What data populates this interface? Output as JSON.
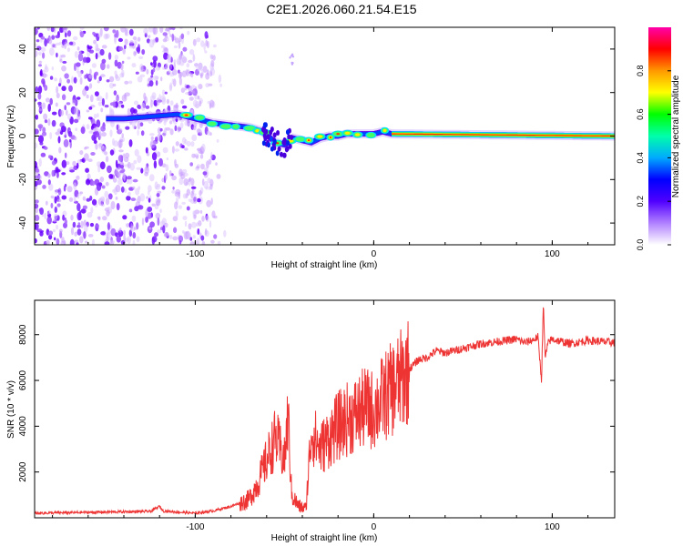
{
  "title": "C2E1.2026.060.21.54.E15",
  "colors": {
    "snr_line": "#ee3333",
    "axis": "#000000",
    "ridge_core": "#ff3300",
    "scatter": "#7a22ff"
  },
  "chart_data": [
    {
      "type": "heatmap",
      "xlabel": "Height of straight line (km)",
      "ylabel": "Frequency (Hz)",
      "xlim": [
        -190,
        135
      ],
      "ylim": [
        -50,
        50
      ],
      "x_ticks": [
        -100,
        0,
        100
      ],
      "x_tick_labels": [
        "-100",
        "0",
        "100"
      ],
      "y_ticks": [
        -40,
        -20,
        0,
        20,
        40
      ],
      "y_tick_labels": [
        "-40",
        "-20",
        "0",
        "20",
        "40"
      ],
      "noise_region_x": [
        -190,
        -88
      ],
      "ridge": {
        "x": [
          -150,
          -140,
          -125,
          -110,
          -100,
          -90,
          -80,
          -70,
          -62,
          -55,
          -50,
          -45,
          -40,
          -35,
          -30,
          -25,
          -20,
          -15,
          -10,
          -5,
          0,
          5,
          10,
          135
        ],
        "y": [
          8,
          8,
          9,
          10,
          8,
          6,
          5,
          4,
          2,
          -3,
          -4,
          -1,
          -2,
          -3,
          -1,
          0,
          0,
          1,
          1,
          1,
          1,
          2,
          1,
          0
        ]
      },
      "colorbar": {
        "label": "Normalized spectral amplitude",
        "range": [
          0,
          1
        ],
        "ticks": [
          0.0,
          0.2,
          0.4,
          0.6,
          0.8
        ],
        "tick_labels": [
          "0.0",
          "0.2",
          "0.4",
          "0.6",
          "0.8"
        ],
        "colormap": [
          "#ffffff",
          "#b080ff",
          "#5000ff",
          "#0000ff",
          "#00aaff",
          "#00ffaa",
          "#00ff00",
          "#ffff00",
          "#ff9900",
          "#ff0000",
          "#ff00aa"
        ]
      }
    },
    {
      "type": "line",
      "xlabel": "Height of straight line (km)",
      "ylabel": "SNR (10 * v/v)",
      "xlim": [
        -190,
        135
      ],
      "ylim": [
        0,
        9500
      ],
      "x_ticks": [
        -100,
        0,
        100
      ],
      "x_tick_labels": [
        "-100",
        "0",
        "100"
      ],
      "y_ticks": [
        2000,
        4000,
        6000,
        8000
      ],
      "y_tick_labels": [
        "2000",
        "4000",
        "6000",
        "8000"
      ],
      "series": [
        {
          "name": "SNR",
          "x": [
            -190,
            -150,
            -125,
            -120,
            -118,
            -110,
            -100,
            -90,
            -80,
            -70,
            -65,
            -60,
            -55,
            -50,
            -48,
            -46,
            -42,
            -38,
            -35,
            -30,
            -25,
            -20,
            -15,
            -10,
            -5,
            0,
            5,
            10,
            15,
            20,
            25,
            30,
            35,
            40,
            50,
            60,
            70,
            80,
            85,
            90,
            92,
            94,
            95,
            96,
            98,
            100,
            110,
            120,
            135
          ],
          "y": [
            200,
            250,
            280,
            500,
            300,
            250,
            200,
            300,
            500,
            800,
            1500,
            2500,
            3500,
            2500,
            4500,
            1000,
            500,
            400,
            3800,
            3000,
            3500,
            4000,
            4300,
            4500,
            4800,
            4700,
            5200,
            5600,
            6000,
            6500,
            6900,
            7000,
            7300,
            7200,
            7400,
            7600,
            7700,
            7800,
            7650,
            7800,
            7900,
            6000,
            9400,
            7000,
            7700,
            7800,
            7600,
            7750,
            7650
          ]
        }
      ]
    }
  ]
}
